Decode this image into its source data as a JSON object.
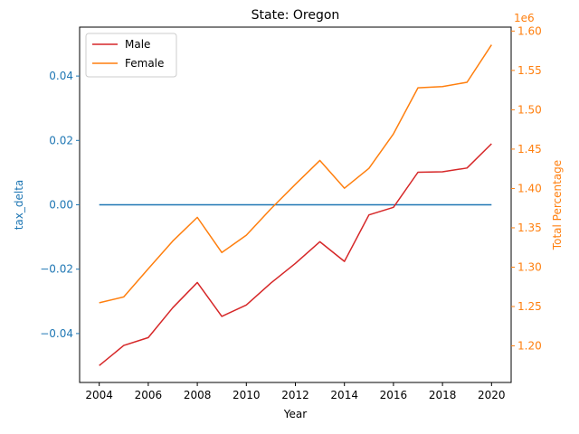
{
  "chart_data": {
    "type": "line",
    "title": "State: Oregon",
    "xlabel": "Year",
    "ylabel_left": "tax_delta",
    "ylabel_right": "Total Percentage",
    "right_offset_label": "1e6",
    "xlim": [
      2003.2,
      2020.8
    ],
    "ylim_left": [
      -0.0552,
      0.0552
    ],
    "ylim_right": [
      1.1535,
      1.605
    ],
    "x_ticks": [
      2004,
      2006,
      2008,
      2010,
      2012,
      2014,
      2016,
      2018,
      2020
    ],
    "y_ticks_left": [
      -0.04,
      -0.02,
      0.0,
      0.02,
      0.04
    ],
    "y_tick_labels_left": [
      "−0.04",
      "−0.02",
      "0.00",
      "0.02",
      "0.04"
    ],
    "y_ticks_right": [
      1.2,
      1.25,
      1.3,
      1.35,
      1.4,
      1.45,
      1.5,
      1.55,
      1.6
    ],
    "y_tick_labels_right": [
      "1.20",
      "1.25",
      "1.30",
      "1.35",
      "1.40",
      "1.45",
      "1.50",
      "1.55",
      "1.60"
    ],
    "x": [
      2004,
      2005,
      2006,
      2007,
      2008,
      2009,
      2010,
      2011,
      2012,
      2013,
      2014,
      2015,
      2016,
      2017,
      2018,
      2019,
      2020
    ],
    "left_series": {
      "values": [
        0,
        0,
        0,
        0,
        0,
        0,
        0,
        0,
        0,
        0,
        0,
        0,
        0,
        0,
        0,
        0,
        0
      ],
      "color": "#1f77b4"
    },
    "series": [
      {
        "name": "Male",
        "color": "#d62728",
        "values": [
          1.175,
          1.2005,
          1.2105,
          1.2485,
          1.2805,
          1.2375,
          1.2519,
          1.2798,
          1.3048,
          1.3323,
          1.3073,
          1.3664,
          1.376,
          1.4206,
          1.4212,
          1.426,
          1.4568
        ]
      },
      {
        "name": "Female",
        "color": "#ff7f0e",
        "values": [
          1.2547,
          1.2622,
          1.298,
          1.3332,
          1.3633,
          1.3186,
          1.3406,
          1.3741,
          1.4053,
          1.4356,
          1.4003,
          1.4256,
          1.4694,
          1.5279,
          1.5295,
          1.5349,
          1.5825
        ]
      }
    ],
    "legend_position": "top-left",
    "grid": false
  }
}
